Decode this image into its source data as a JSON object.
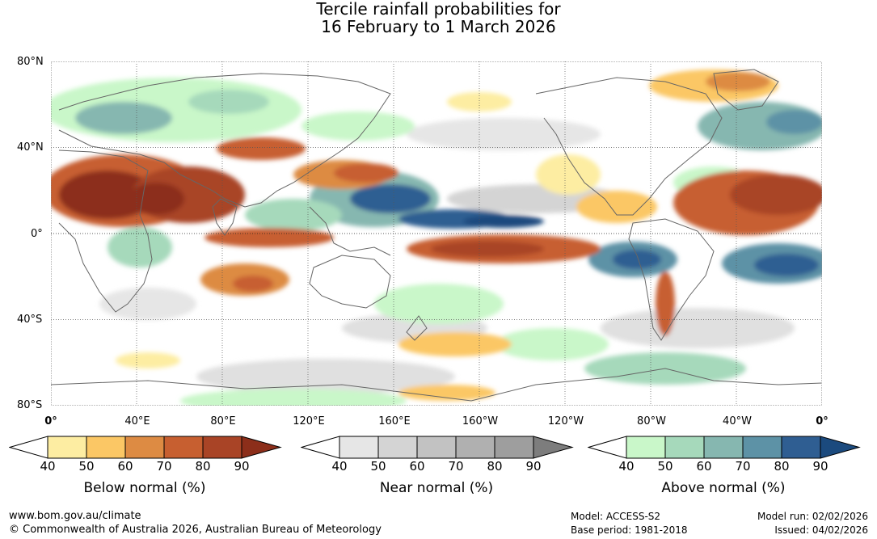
{
  "title": {
    "line1": "Tercile rainfall probabilities for",
    "line2": "16 February to 1 March 2026"
  },
  "map": {
    "lat_labels": [
      "80°N",
      "40°N",
      "0°",
      "40°S",
      "80°S"
    ],
    "lon_labels": [
      "0°",
      "40°E",
      "80°E",
      "120°E",
      "160°E",
      "160°W",
      "120°W",
      "80°W",
      "40°W",
      "0°"
    ]
  },
  "legends": [
    {
      "key": "below",
      "title": "Below normal (%)",
      "ticks": [
        "40",
        "50",
        "60",
        "70",
        "80",
        "90"
      ],
      "colors": [
        "#fdeda2",
        "#fbc765",
        "#dd8b43",
        "#c75f30",
        "#a94426",
        "#8c2e1a"
      ]
    },
    {
      "key": "near",
      "title": "Near normal (%)",
      "ticks": [
        "40",
        "50",
        "60",
        "70",
        "80",
        "90"
      ],
      "colors": [
        "#e6e6e6",
        "#d4d4d4",
        "#c2c2c2",
        "#b0b0b0",
        "#9e9e9e",
        "#7d7d7d"
      ]
    },
    {
      "key": "above",
      "title": "Above normal (%)",
      "ticks": [
        "40",
        "50",
        "60",
        "70",
        "80",
        "90"
      ],
      "colors": [
        "#c9f7c9",
        "#a6d9bb",
        "#86b7b0",
        "#5d92a6",
        "#2f5e92",
        "#1b4a7e"
      ]
    }
  ],
  "footer": {
    "url": "www.bom.gov.au/climate",
    "copyright": "© Commonwealth of Australia 2026, Australian Bureau of Meteorology",
    "model": "Model: ACCESS-S2",
    "base_period": "Base period: 1981-2018",
    "model_run": "Model run: 02/02/2026",
    "issued": "Issued: 04/02/2026"
  }
}
